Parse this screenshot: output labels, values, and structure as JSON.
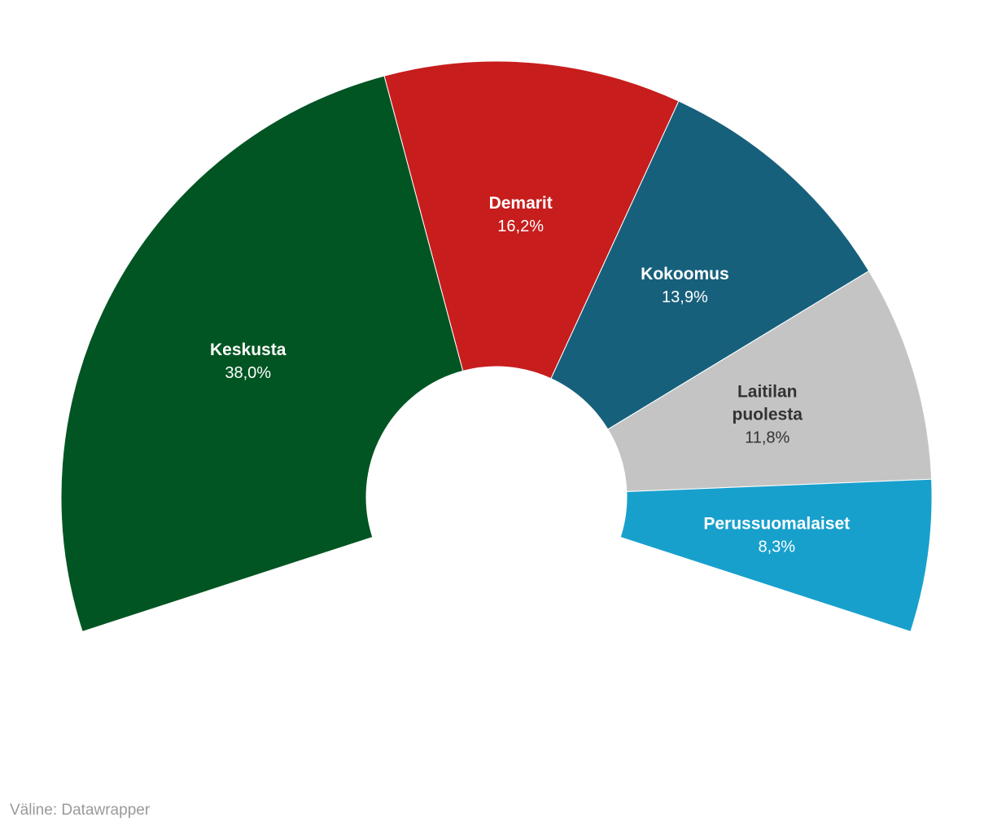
{
  "chart_data": {
    "type": "pie",
    "variant": "half-donut (parliament)",
    "title": "",
    "slices": [
      {
        "name": "Keskusta",
        "name_lines": [
          "Keskusta"
        ],
        "value": 38.0,
        "value_label": "38,0%",
        "color": "#005522",
        "text_color": "#ffffff"
      },
      {
        "name": "Demarit",
        "name_lines": [
          "Demarit"
        ],
        "value": 16.2,
        "value_label": "16,2%",
        "color": "#c71d1d",
        "text_color": "#ffffff"
      },
      {
        "name": "Kokoomus",
        "name_lines": [
          "Kokoomus"
        ],
        "value": 13.9,
        "value_label": "13,9%",
        "color": "#17607c",
        "text_color": "#ffffff"
      },
      {
        "name": "Laitilan puolesta",
        "name_lines": [
          "Laitilan",
          "puolesta"
        ],
        "value": 11.8,
        "value_label": "11,8%",
        "color": "#c4c4c4",
        "text_color": "#333333"
      },
      {
        "name": "Perussuomalaiset",
        "name_lines": [
          "Perussuomalaiset"
        ],
        "value": 8.3,
        "value_label": "8,3%",
        "color": "#18a0cd",
        "text_color": "#ffffff"
      }
    ]
  },
  "footer": {
    "source": "Väline: Datawrapper"
  }
}
